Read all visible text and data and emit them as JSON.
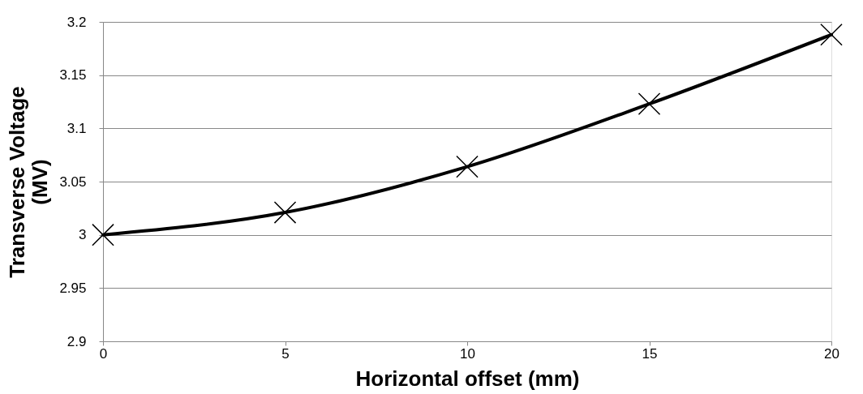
{
  "chart_data": {
    "type": "line",
    "xlabel": "Horizontal offset (mm)",
    "ylabel": "Transverse Voltage (MV)",
    "x": [
      0,
      5,
      10,
      15,
      20
    ],
    "series": [
      {
        "color": "#000000",
        "values": [
          3.0,
          3.021,
          3.064,
          3.123,
          3.188
        ]
      }
    ],
    "xlim": [
      0,
      20
    ],
    "xticks": [
      0,
      5,
      10,
      15,
      20
    ],
    "ylim": [
      2.9,
      3.2
    ],
    "yticks": [
      2.9,
      2.95,
      3,
      3.05,
      3.1,
      3.15,
      3.2
    ],
    "grid": "y",
    "marker": "cross",
    "line_style": "solid"
  }
}
